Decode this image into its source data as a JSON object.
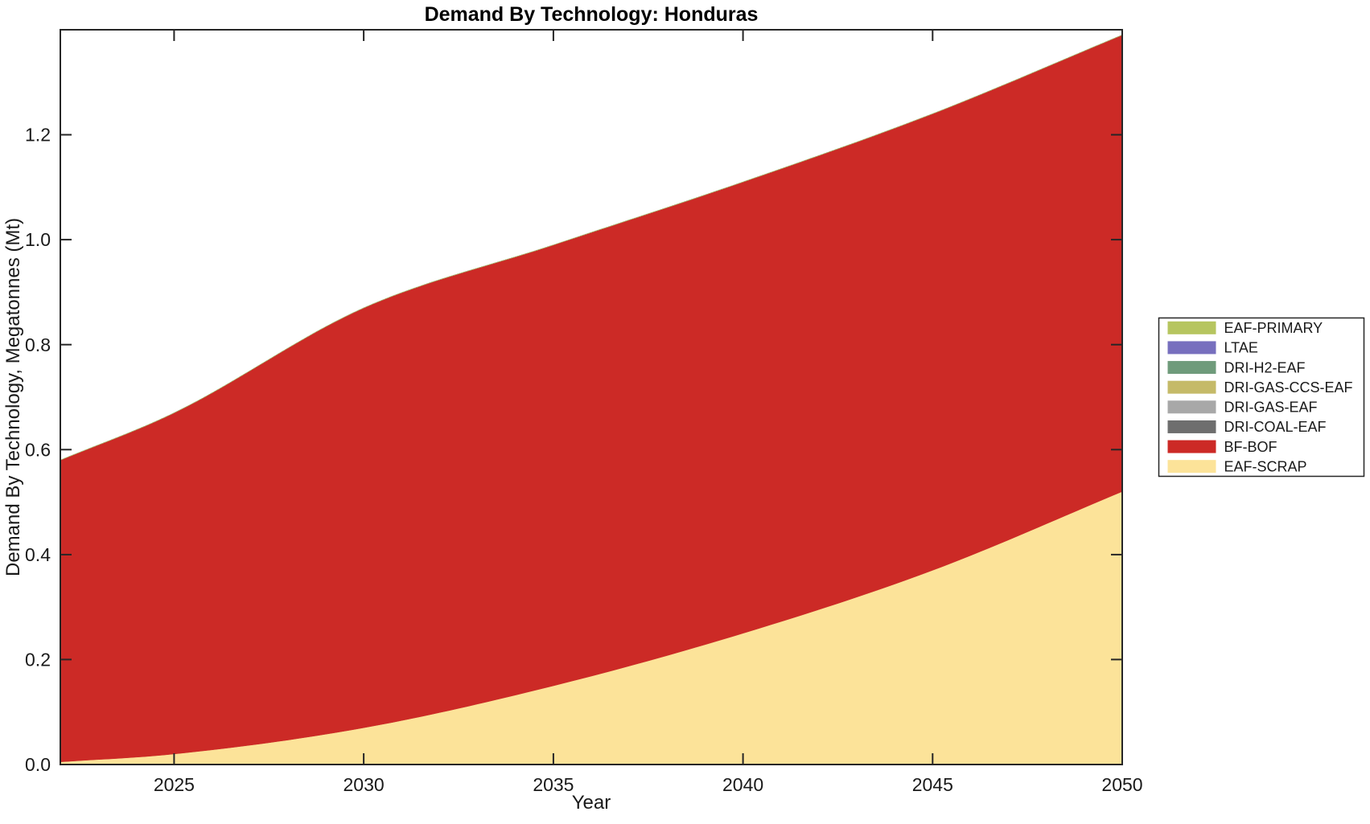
{
  "title": "Demand By Technology: Honduras",
  "chart_data": {
    "type": "area",
    "stacked": true,
    "title": "Demand By Technology: Honduras",
    "xlabel": "Year",
    "ylabel": "Demand By Technology, Megatonnes (Mt)",
    "x": [
      2022,
      2025,
      2030,
      2035,
      2040,
      2045,
      2050
    ],
    "series": [
      {
        "name": "EAF-SCRAP",
        "color": "#fce399",
        "values": [
          0.005,
          0.02,
          0.07,
          0.15,
          0.25,
          0.37,
          0.52
        ]
      },
      {
        "name": "BF-BOF",
        "color": "#cc2a26",
        "values": [
          0.575,
          0.65,
          0.8,
          0.84,
          0.86,
          0.87,
          0.87
        ]
      },
      {
        "name": "DRI-COAL-EAF",
        "color": "#6e6e6e",
        "values": [
          0,
          0,
          0,
          0,
          0,
          0,
          0
        ]
      },
      {
        "name": "DRI-GAS-EAF",
        "color": "#a8a8a8",
        "values": [
          0,
          0,
          0,
          0,
          0,
          0,
          0
        ]
      },
      {
        "name": "DRI-GAS-CCS-EAF",
        "color": "#c5ba68",
        "values": [
          0,
          0,
          0,
          0,
          0,
          0,
          0
        ]
      },
      {
        "name": "DRI-H2-EAF",
        "color": "#6f9b7b",
        "values": [
          0,
          0,
          0,
          0,
          0,
          0,
          0
        ]
      },
      {
        "name": "LTAE",
        "color": "#776fbe",
        "values": [
          0,
          0,
          0,
          0,
          0,
          0,
          0
        ]
      },
      {
        "name": "EAF-PRIMARY",
        "color": "#b6c55f",
        "values": [
          0,
          0,
          0,
          0,
          0,
          0,
          0
        ]
      }
    ],
    "totals": [
      0.58,
      0.67,
      0.87,
      0.99,
      1.11,
      1.24,
      1.39
    ],
    "xlim": [
      2022,
      2050
    ],
    "ylim": [
      0,
      1.4
    ],
    "x_ticks": [
      "2025",
      "2030",
      "2035",
      "2040",
      "2045",
      "2050"
    ],
    "x_tick_years": [
      2025,
      2030,
      2035,
      2040,
      2045,
      2050
    ],
    "y_ticks": [
      "0.0",
      "0.2",
      "0.4",
      "0.6",
      "0.8",
      "1.0",
      "1.2"
    ],
    "y_tick_values": [
      0,
      0.2,
      0.4,
      0.6,
      0.8,
      1.0,
      1.2
    ],
    "grid": false,
    "legend": {
      "position": "right",
      "entries_top_to_bottom": [
        "EAF-PRIMARY",
        "LTAE",
        "DRI-H2-EAF",
        "DRI-GAS-CCS-EAF",
        "DRI-GAS-EAF",
        "DRI-COAL-EAF",
        "BF-BOF",
        "EAF-SCRAP"
      ]
    }
  }
}
